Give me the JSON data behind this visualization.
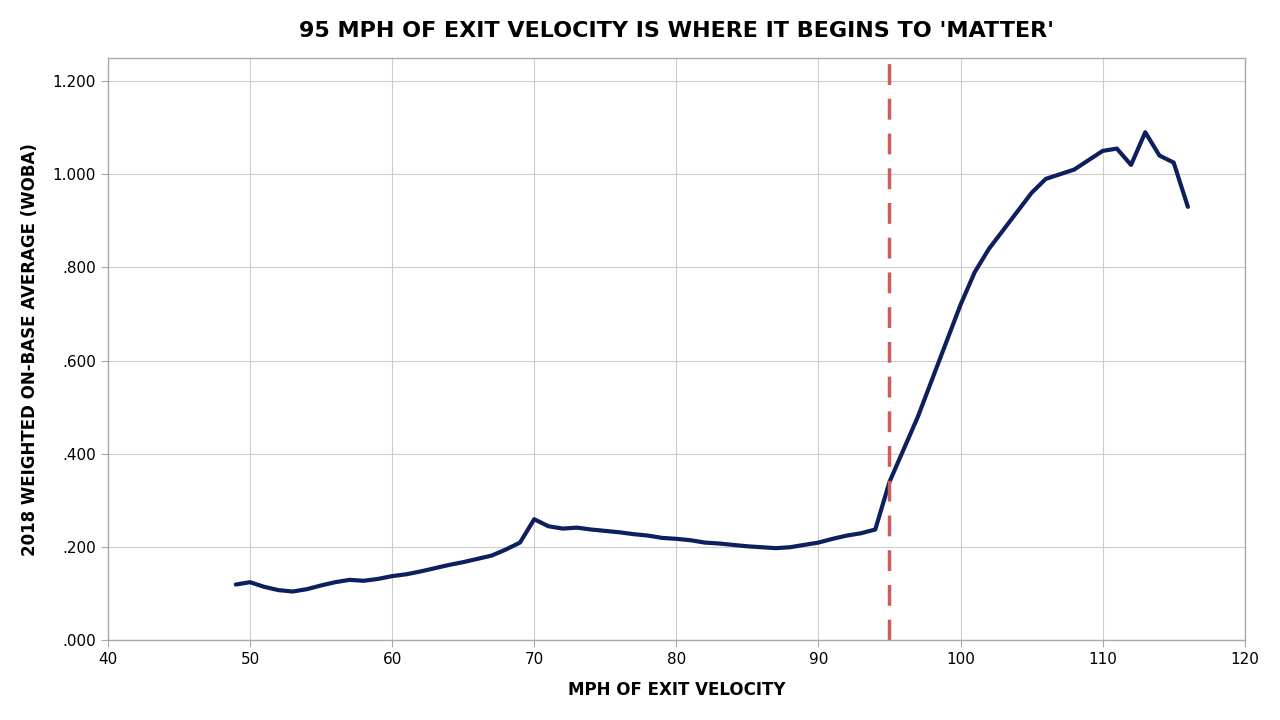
{
  "title": "95 MPH OF EXIT VELOCITY IS WHERE IT BEGINS TO 'MATTER'",
  "xlabel": "MPH OF EXIT VELOCITY",
  "ylabel": "2018 WEIGHTED ON-BASE AVERAGE (WOBA)",
  "xlim": [
    40,
    120
  ],
  "ylim": [
    0,
    1.25
  ],
  "xticks": [
    40,
    50,
    60,
    70,
    80,
    90,
    100,
    110,
    120
  ],
  "yticks": [
    0.0,
    0.2,
    0.4,
    0.6,
    0.8,
    1.0,
    1.2
  ],
  "ytick_labels": [
    ".000",
    ".200",
    ".400",
    ".600",
    ".800",
    "1.000",
    "1.200"
  ],
  "vline_x": 95,
  "vline_color": "#cd5c5c",
  "line_color": "#0d1f5c",
  "background_color": "#ffffff",
  "title_fontsize": 16,
  "label_fontsize": 12,
  "tick_fontsize": 11,
  "x_data": [
    49,
    50,
    51,
    52,
    53,
    54,
    55,
    56,
    57,
    58,
    59,
    60,
    61,
    62,
    63,
    64,
    65,
    66,
    67,
    68,
    69,
    70,
    71,
    72,
    73,
    74,
    75,
    76,
    77,
    78,
    79,
    80,
    81,
    82,
    83,
    84,
    85,
    86,
    87,
    88,
    89,
    90,
    91,
    92,
    93,
    94,
    95,
    96,
    97,
    98,
    99,
    100,
    101,
    102,
    103,
    104,
    105,
    106,
    107,
    108,
    109,
    110,
    111,
    112,
    113,
    114,
    115,
    116
  ],
  "y_data": [
    0.12,
    0.125,
    0.115,
    0.108,
    0.105,
    0.11,
    0.118,
    0.125,
    0.13,
    0.128,
    0.132,
    0.138,
    0.142,
    0.148,
    0.155,
    0.162,
    0.168,
    0.175,
    0.182,
    0.195,
    0.21,
    0.26,
    0.245,
    0.24,
    0.242,
    0.238,
    0.235,
    0.232,
    0.228,
    0.225,
    0.22,
    0.218,
    0.215,
    0.21,
    0.208,
    0.205,
    0.202,
    0.2,
    0.198,
    0.2,
    0.205,
    0.21,
    0.218,
    0.225,
    0.23,
    0.238,
    0.34,
    0.41,
    0.48,
    0.56,
    0.64,
    0.72,
    0.79,
    0.84,
    0.88,
    0.92,
    0.96,
    0.99,
    1.0,
    1.01,
    1.03,
    1.05,
    1.055,
    1.02,
    1.09,
    1.04,
    1.025,
    0.93
  ]
}
